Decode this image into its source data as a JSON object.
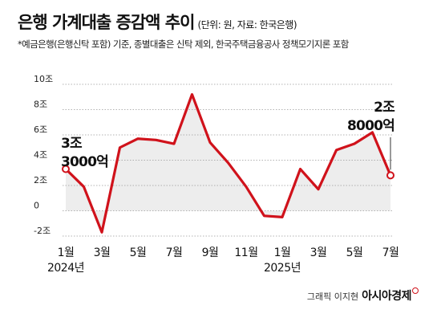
{
  "header": {
    "title": "은행 가계대출 증감액 추이",
    "unit": "(단위: 원, 자료: 한국은행)",
    "note": "*예금은행(은행신탁 포함) 기준, 종별대출은 신탁 제외, 한국주택금융공사 정책모기지론 포함"
  },
  "credit": {
    "label": "그래픽 이지현",
    "brand": "아시아경제"
  },
  "colors": {
    "line": "#d0121b",
    "area": "#ededed",
    "grid": "#9a9a9a"
  },
  "chart_data": {
    "type": "line",
    "title": "은행 가계대출 증감액 추이",
    "unit": "조원",
    "ylim": [
      -2,
      10
    ],
    "yticks": [
      {
        "value": 10,
        "label": "10조"
      },
      {
        "value": 8,
        "label": "8조"
      },
      {
        "value": 6,
        "label": "6조"
      },
      {
        "value": 4,
        "label": "4조"
      },
      {
        "value": 2,
        "label": "2조"
      },
      {
        "value": 0,
        "label": "0"
      },
      {
        "value": -2,
        "label": "-2조"
      }
    ],
    "x": [
      "2024-01",
      "2024-02",
      "2024-03",
      "2024-04",
      "2024-05",
      "2024-06",
      "2024-07",
      "2024-08",
      "2024-09",
      "2024-10",
      "2024-11",
      "2024-12",
      "2025-01",
      "2025-02",
      "2025-03",
      "2025-04",
      "2025-05",
      "2025-06",
      "2025-07"
    ],
    "xtick_labels": [
      {
        "x": "2024-01",
        "month": "1월",
        "year": "2024년"
      },
      {
        "x": "2024-03",
        "month": "3월",
        "year": ""
      },
      {
        "x": "2024-05",
        "month": "5월",
        "year": ""
      },
      {
        "x": "2024-07",
        "month": "7월",
        "year": ""
      },
      {
        "x": "2024-09",
        "month": "9월",
        "year": ""
      },
      {
        "x": "2024-11",
        "month": "11월",
        "year": ""
      },
      {
        "x": "2025-01",
        "month": "1월",
        "year": "2025년"
      },
      {
        "x": "2025-03",
        "month": "3월",
        "year": ""
      },
      {
        "x": "2025-05",
        "month": "5월",
        "year": ""
      },
      {
        "x": "2025-07",
        "month": "7월",
        "year": ""
      }
    ],
    "series": [
      {
        "values": [
          3.3,
          1.9,
          -1.7,
          5.0,
          5.7,
          5.6,
          5.3,
          9.2,
          5.4,
          3.8,
          1.9,
          -0.4,
          -0.5,
          3.3,
          1.7,
          4.8,
          5.3,
          6.2,
          2.8
        ]
      }
    ],
    "annotations": [
      {
        "x": "2024-01",
        "value": 3.3,
        "lines": [
          "3조",
          "3000억"
        ]
      },
      {
        "x": "2025-07",
        "value": 2.8,
        "lines": [
          "2조",
          "8000억"
        ]
      }
    ],
    "grid": true
  }
}
